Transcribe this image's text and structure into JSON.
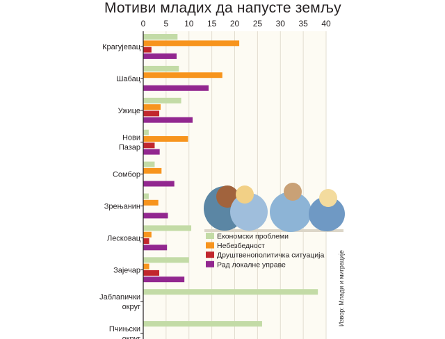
{
  "chart_data": {
    "type": "bar",
    "title": "Мотиви младих да напусте земљу",
    "source": "Извор: Млади и миграције",
    "xlim": [
      0,
      40
    ],
    "xticks": [
      0,
      5,
      10,
      15,
      20,
      25,
      30,
      35,
      40
    ],
    "categories": [
      [
        "Крагујевац"
      ],
      [
        "Шабац"
      ],
      [
        "Ужице"
      ],
      [
        "Нови",
        "Пазар"
      ],
      [
        "Сомбор"
      ],
      [
        "Зрењанин"
      ],
      [
        "Лесковац"
      ],
      [
        "Зајечар"
      ],
      [
        "Јаблanички",
        "округ"
      ],
      [
        "Пчињски",
        "округ"
      ]
    ],
    "series": [
      {
        "name": "Економски проблеми",
        "color": "#c3dba6",
        "values": [
          7.5,
          7.8,
          8.3,
          1.2,
          2.5,
          1.2,
          10.5,
          10,
          38.2,
          26
        ]
      },
      {
        "name": "Небезбедност",
        "color": "#f7941d",
        "values": [
          21,
          17.3,
          3.8,
          9.8,
          4,
          3.3,
          1.8,
          1.3,
          null,
          null
        ]
      },
      {
        "name": "Друштвенополитичка ситуација",
        "color": "#c1272d",
        "values": [
          1.8,
          null,
          3.5,
          2.5,
          null,
          null,
          1.3,
          3.5,
          null,
          null
        ]
      },
      {
        "name": "Рад локалне управе",
        "color": "#92278f",
        "values": [
          7.3,
          14.3,
          10.8,
          3.6,
          6.8,
          5.4,
          5.2,
          9,
          null,
          null
        ]
      }
    ],
    "legend_position": "lower-right",
    "grid": true
  },
  "illustration": {
    "name": "four young people seen from behind"
  }
}
